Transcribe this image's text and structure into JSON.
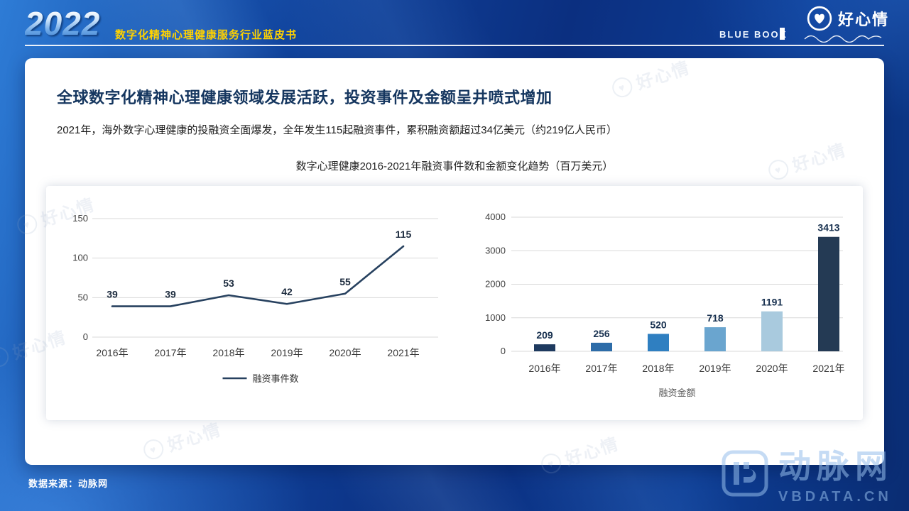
{
  "header": {
    "year": "2022",
    "title": "数字化精神心理健康服务行业蓝皮书",
    "blue_book": "BLUE BOOK",
    "brand": "好心情"
  },
  "main": {
    "title": "全球数字化精神心理健康领域发展活跃，投资事件及金额呈井喷式增加",
    "subtitle": "2021年，海外数字心理健康的投融资全面爆发，全年发生115起融资事件，累积融资额超过34亿美元（约219亿人民币）",
    "chart_title": "数字心理健康2016-2021年融资事件数和金额变化趋势（百万美元）"
  },
  "footer": {
    "source": "数据来源：动脉网",
    "watermark_cn": "动脉网",
    "watermark_en": "VBDATA.CN"
  },
  "chart_data": [
    {
      "type": "line",
      "title": "融资事件数",
      "categories": [
        "2016年",
        "2017年",
        "2018年",
        "2019年",
        "2020年",
        "2021年"
      ],
      "values": [
        39,
        39,
        53,
        42,
        55,
        115
      ],
      "ylim": [
        0,
        150
      ],
      "yticks": [
        0,
        50,
        100,
        150
      ],
      "line_color": "#27415f",
      "grid_color": "#d9d9d9",
      "legend_label": "融资事件数",
      "legend_position": "bottom",
      "grid": true
    },
    {
      "type": "bar",
      "title": "融资金额",
      "categories": [
        "2016年",
        "2017年",
        "2018年",
        "2019年",
        "2020年",
        "2021年"
      ],
      "values": [
        209,
        256,
        520,
        718,
        1191,
        3413
      ],
      "ylim": [
        0,
        4000
      ],
      "yticks": [
        0,
        1000,
        2000,
        3000,
        4000
      ],
      "bar_colors": [
        "#1e3a5f",
        "#2d6ca8",
        "#2f7fc1",
        "#6aa5cf",
        "#a9cade",
        "#243a54"
      ],
      "grid_color": "#d9d9d9",
      "legend_label": "融资金额",
      "legend_position": "bottom",
      "grid": true
    }
  ]
}
